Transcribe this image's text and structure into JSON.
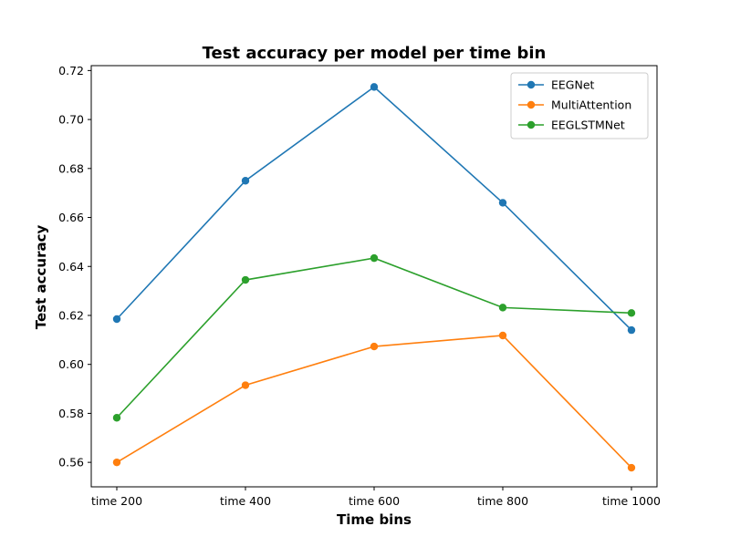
{
  "chart_data": {
    "type": "line",
    "title": "Test accuracy per model per time bin",
    "xlabel": "Time bins",
    "ylabel": "Test accuracy",
    "categories": [
      "time 200",
      "time 400",
      "time 600",
      "time 800",
      "time 1000"
    ],
    "ylim": [
      0.55,
      0.722
    ],
    "yticks": [
      0.56,
      0.58,
      0.6,
      0.62,
      0.64,
      0.66,
      0.68,
      0.7,
      0.72
    ],
    "ytick_labels": [
      "0.56",
      "0.58",
      "0.60",
      "0.62",
      "0.64",
      "0.66",
      "0.68",
      "0.70",
      "0.72"
    ],
    "grid": false,
    "legend": "top-right",
    "series": [
      {
        "name": "EEGNet",
        "color": "#1f77b4",
        "values": [
          0.6185,
          0.675,
          0.7133,
          0.666,
          0.614
        ]
      },
      {
        "name": "MultiAttention",
        "color": "#ff7f0e",
        "values": [
          0.56,
          0.5915,
          0.6073,
          0.6118,
          0.5578
        ]
      },
      {
        "name": "EEGLSTMNet",
        "color": "#2ca02c",
        "values": [
          0.5782,
          0.6345,
          0.6434,
          0.6232,
          0.621
        ]
      }
    ]
  }
}
